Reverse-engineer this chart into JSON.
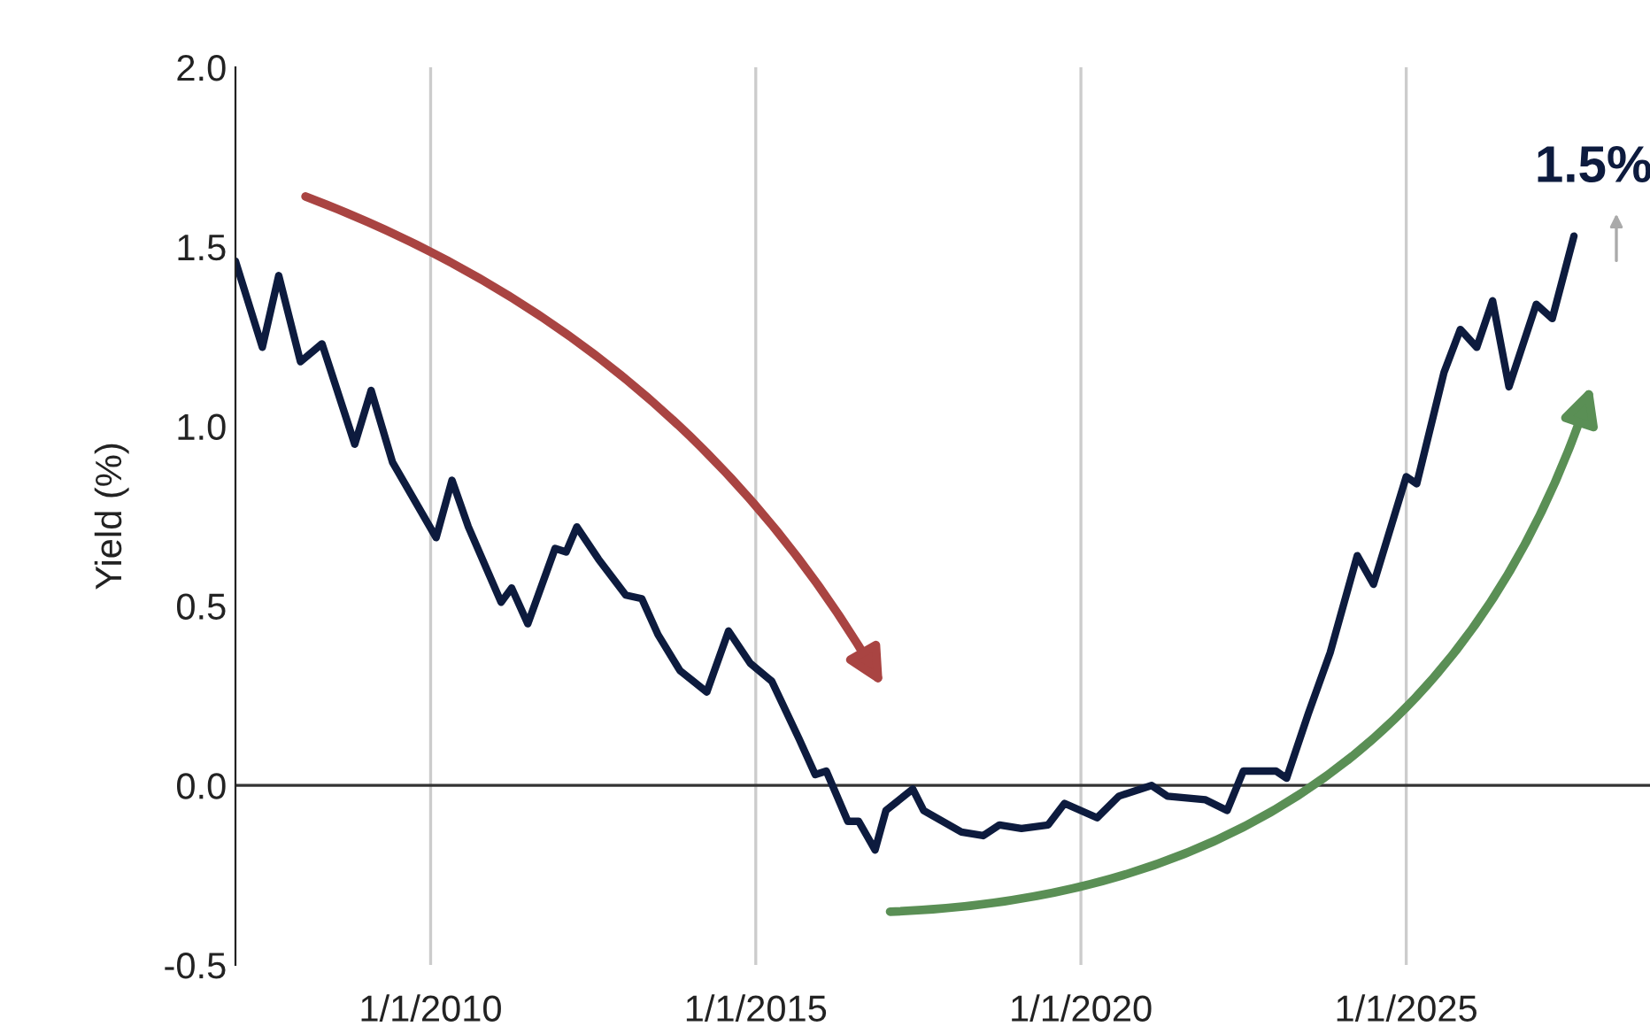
{
  "chart_data": {
    "type": "line",
    "ylabel": "Yield (%)",
    "x": [
      "2007-01",
      "2007-06",
      "2007-09",
      "2008-01",
      "2008-05",
      "2008-11",
      "2009-02",
      "2009-06",
      "2010-02",
      "2010-05",
      "2010-08",
      "2011-02",
      "2011-04",
      "2011-07",
      "2011-12",
      "2012-02",
      "2012-04",
      "2012-08",
      "2013-01",
      "2013-04",
      "2013-07",
      "2013-11",
      "2014-04",
      "2014-08",
      "2014-12",
      "2015-04",
      "2015-09",
      "2015-12",
      "2016-02",
      "2016-06",
      "2016-08",
      "2016-11",
      "2017-01",
      "2017-06",
      "2017-08",
      "2018-03",
      "2018-07",
      "2018-10",
      "2019-02",
      "2019-07",
      "2019-10",
      "2020-04",
      "2020-08",
      "2021-02",
      "2021-05",
      "2021-12",
      "2022-04",
      "2022-07",
      "2023-01",
      "2023-03",
      "2023-07",
      "2023-11",
      "2024-04",
      "2024-07",
      "2025-01",
      "2025-03",
      "2025-08",
      "2025-11",
      "2026-02",
      "2026-05",
      "2026-08",
      "2027-01",
      "2027-04",
      "2027-08"
    ],
    "series": [
      {
        "color": "#0d1b3e",
        "values": [
          1.46,
          1.22,
          1.42,
          1.18,
          1.23,
          0.95,
          1.1,
          0.9,
          0.69,
          0.85,
          0.72,
          0.51,
          0.55,
          0.45,
          0.66,
          0.65,
          0.72,
          0.63,
          0.53,
          0.52,
          0.42,
          0.32,
          0.26,
          0.43,
          0.34,
          0.29,
          0.13,
          0.03,
          0.04,
          -0.1,
          -0.1,
          -0.18,
          -0.07,
          -0.01,
          -0.07,
          -0.13,
          -0.14,
          -0.11,
          -0.12,
          -0.11,
          -0.05,
          -0.09,
          -0.03,
          0.0,
          -0.03,
          -0.04,
          -0.07,
          0.04,
          0.04,
          0.02,
          0.2,
          0.37,
          0.64,
          0.56,
          0.86,
          0.84,
          1.15,
          1.27,
          1.22,
          1.35,
          1.11,
          1.34,
          1.3,
          1.53
        ]
      }
    ],
    "xlim": [
      "2007-01-01",
      "2028-10-01"
    ],
    "xticks": [
      {
        "value": "2010-01-01",
        "label": "1/1/2010"
      },
      {
        "value": "2015-01-01",
        "label": "1/1/2015"
      },
      {
        "value": "2020-01-01",
        "label": "1/1/2020"
      },
      {
        "value": "2025-01-01",
        "label": "1/1/2025"
      }
    ],
    "ylim": [
      -0.5,
      2.0
    ],
    "yticks": [
      {
        "value": -0.5,
        "label": "-0.5"
      },
      {
        "value": 0.0,
        "label": "0.0"
      },
      {
        "value": 0.5,
        "label": "0.5"
      },
      {
        "value": 1.0,
        "label": "1.0"
      },
      {
        "value": 1.5,
        "label": "1.5"
      },
      {
        "value": 2.0,
        "label": "2.0"
      }
    ],
    "grid": "x",
    "ref_lines": [
      {
        "axis": "y",
        "value": 0,
        "color": "#333333"
      }
    ],
    "annotations": [
      {
        "text": "1.5%",
        "x": "2027-08",
        "y": 1.53
      }
    ]
  }
}
